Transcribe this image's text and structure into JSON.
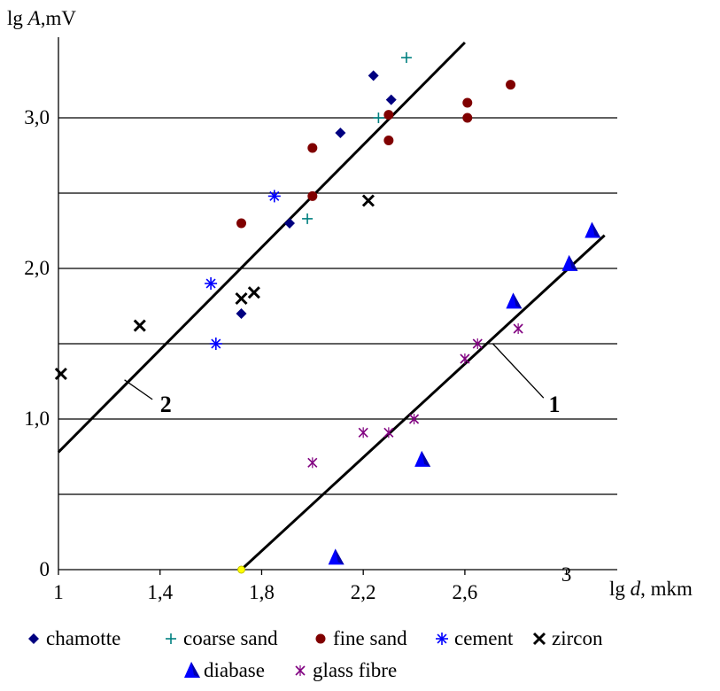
{
  "chart_data": {
    "type": "scatter",
    "title": "",
    "xlabel_prefix": "lg",
    "xlabel_var": "d",
    "xlabel_unit": ", mkm",
    "ylabel_prefix": "lg",
    "ylabel_var": "A",
    "ylabel_unit": ",mV",
    "xlim": [
      1,
      3.2
    ],
    "ylim": [
      0,
      3.5
    ],
    "x_ticks": [
      1,
      1.4,
      1.8,
      2.2,
      2.6,
      3
    ],
    "x_tick_labels": [
      "1",
      "1,4",
      "1,8",
      "2,2",
      "2,6",
      "3"
    ],
    "y_ticks": [
      0,
      1.0,
      2.0,
      3.0
    ],
    "y_tick_labels": [
      "0",
      "1,0",
      "2,0",
      "3,0"
    ],
    "y_gridlines": [
      0.5,
      1.0,
      1.5,
      2.0,
      2.5,
      3.0
    ],
    "grid": true,
    "legend_position": "bottom",
    "series": [
      {
        "name": "chamotte",
        "marker": "diamond",
        "color": "#000080",
        "points": [
          [
            1.72,
            1.7
          ],
          [
            1.91,
            2.3
          ],
          [
            2.11,
            2.9
          ],
          [
            2.24,
            3.28
          ],
          [
            2.31,
            3.12
          ]
        ]
      },
      {
        "name": "coarse sand",
        "marker": "plus",
        "color": "#008080",
        "points": [
          [
            1.98,
            2.33
          ],
          [
            2.26,
            3.0
          ],
          [
            2.37,
            3.4
          ]
        ]
      },
      {
        "name": "fine sand",
        "marker": "circle",
        "color": "#800000",
        "points": [
          [
            1.72,
            2.3
          ],
          [
            2.0,
            2.48
          ],
          [
            2.0,
            2.8
          ],
          [
            2.3,
            2.85
          ],
          [
            2.3,
            3.02
          ],
          [
            2.61,
            3.0
          ],
          [
            2.61,
            3.1
          ],
          [
            2.78,
            3.22
          ]
        ]
      },
      {
        "name": "cement",
        "marker": "star",
        "color": "#0000ff",
        "points": [
          [
            1.6,
            1.9
          ],
          [
            1.62,
            1.5
          ],
          [
            1.85,
            2.48
          ]
        ]
      },
      {
        "name": "zircon",
        "marker": "x",
        "color": "#000000",
        "points": [
          [
            1.01,
            1.3
          ],
          [
            1.32,
            1.62
          ],
          [
            1.72,
            1.8
          ],
          [
            1.77,
            1.84
          ],
          [
            2.22,
            2.45
          ]
        ]
      },
      {
        "name": "diabase",
        "marker": "triangle",
        "color": "#0000ff",
        "points": [
          [
            2.09,
            0.08
          ],
          [
            2.43,
            0.73
          ],
          [
            2.79,
            1.78
          ],
          [
            3.01,
            2.03
          ],
          [
            3.1,
            2.25
          ]
        ]
      },
      {
        "name": "glass fibre",
        "marker": "asterisk",
        "color": "#800080",
        "points": [
          [
            2.0,
            0.71
          ],
          [
            2.2,
            0.91
          ],
          [
            2.3,
            0.91
          ],
          [
            2.4,
            1.0
          ],
          [
            2.6,
            1.4
          ],
          [
            2.65,
            1.5
          ],
          [
            2.81,
            1.6
          ]
        ]
      }
    ],
    "lines": [
      {
        "label": "1",
        "from": [
          1.72,
          0.0
        ],
        "to": [
          3.15,
          2.22
        ],
        "label_pos": [
          2.93,
          1.1
        ]
      },
      {
        "label": "2",
        "from": [
          1.0,
          0.78
        ],
        "to": [
          2.6,
          3.5
        ],
        "label_pos": [
          1.4,
          1.1
        ]
      }
    ],
    "origin_marker": {
      "x": 1.72,
      "y": 0.0,
      "color": "#ffff00"
    }
  }
}
